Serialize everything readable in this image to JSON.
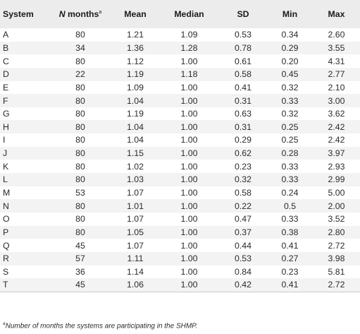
{
  "table": {
    "headers": {
      "system": "System",
      "n_months_italic": "N",
      "n_months_rest": " months",
      "n_months_sup": "a",
      "mean": "Mean",
      "median": "Median",
      "sd": "SD",
      "min": "Min",
      "max": "Max"
    },
    "rows": [
      [
        "A",
        "80",
        "1.21",
        "1.09",
        "0.53",
        "0.34",
        "2.60"
      ],
      [
        "B",
        "34",
        "1.36",
        "1.28",
        "0.78",
        "0.29",
        "3.55"
      ],
      [
        "C",
        "80",
        "1.12",
        "1.00",
        "0.61",
        "0.20",
        "4.31"
      ],
      [
        "D",
        "22",
        "1.19",
        "1.18",
        "0.58",
        "0.45",
        "2.77"
      ],
      [
        "E",
        "80",
        "1.09",
        "1.00",
        "0.41",
        "0.32",
        "2.10"
      ],
      [
        "F",
        "80",
        "1.04",
        "1.00",
        "0.31",
        "0.33",
        "3.00"
      ],
      [
        "G",
        "80",
        "1.19",
        "1.00",
        "0.63",
        "0.32",
        "3.62"
      ],
      [
        "H",
        "80",
        "1.04",
        "1.00",
        "0.31",
        "0.25",
        "2.42"
      ],
      [
        "I",
        "80",
        "1.04",
        "1.00",
        "0.29",
        "0.25",
        "2.42"
      ],
      [
        "J",
        "80",
        "1.15",
        "1.00",
        "0.62",
        "0.28",
        "3.97"
      ],
      [
        "K",
        "80",
        "1.02",
        "1.00",
        "0.23",
        "0.33",
        "2.93"
      ],
      [
        "L",
        "80",
        "1.03",
        "1.00",
        "0.32",
        "0.33",
        "2.99"
      ],
      [
        "M",
        "53",
        "1.07",
        "1.00",
        "0.58",
        "0.24",
        "5.00"
      ],
      [
        "N",
        "80",
        "1.01",
        "1.00",
        "0.22",
        "0.5",
        "2.00"
      ],
      [
        "O",
        "80",
        "1.07",
        "1.00",
        "0.47",
        "0.33",
        "3.52"
      ],
      [
        "P",
        "80",
        "1.05",
        "1.00",
        "0.37",
        "0.38",
        "2.80"
      ],
      [
        "Q",
        "45",
        "1.07",
        "1.00",
        "0.44",
        "0.41",
        "2.72"
      ],
      [
        "R",
        "57",
        "1.11",
        "1.00",
        "0.53",
        "0.27",
        "3.98"
      ],
      [
        "S",
        "36",
        "1.14",
        "1.00",
        "0.84",
        "0.23",
        "5.81"
      ],
      [
        "T",
        "45",
        "1.06",
        "1.00",
        "0.42",
        "0.41",
        "2.72"
      ]
    ]
  },
  "footnote": {
    "marker": "a",
    "text": "Number of months the systems are participating in the SHMP."
  },
  "colors": {
    "header_bg": "#ececec",
    "stripe_bg": "#f3f3f3",
    "rule": "#c8c8c8",
    "text": "#2b2b2b"
  }
}
